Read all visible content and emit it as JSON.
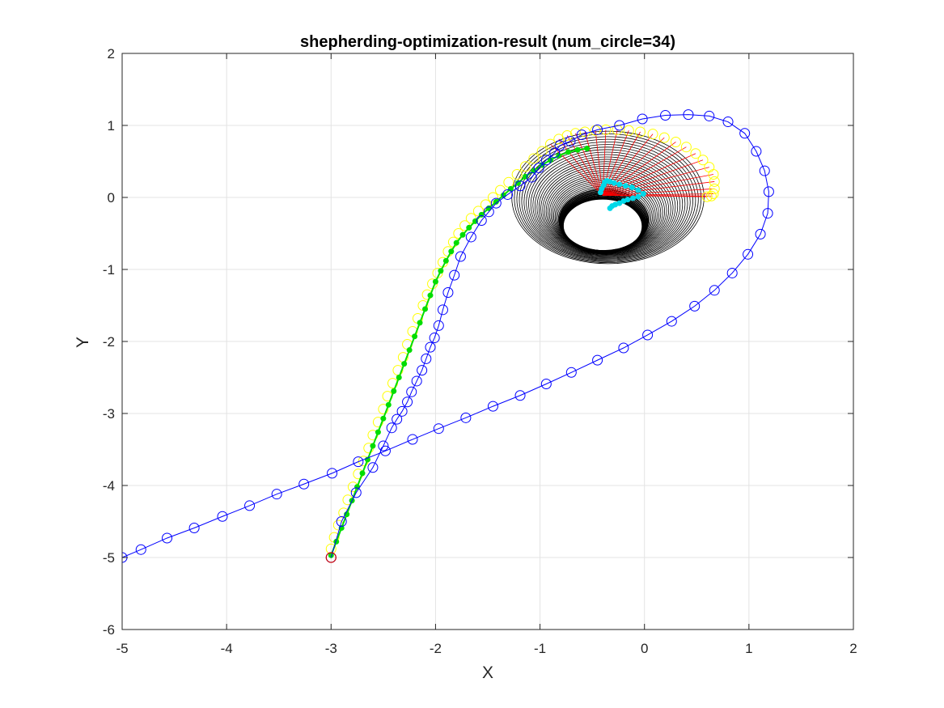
{
  "chart_data": {
    "type": "scatter",
    "title": "shepherding-optimization-result (num_circle=34)",
    "xlabel": "X",
    "ylabel": "Y",
    "xlim": [
      -5,
      2
    ],
    "ylim": [
      -6,
      2
    ],
    "xticks": [
      "-5",
      "-4",
      "-3",
      "-2",
      "-1",
      "0",
      "1",
      "2"
    ],
    "yticks": [
      "-6",
      "-5",
      "-4",
      "-3",
      "-2",
      "-1",
      "0",
      "1",
      "2"
    ],
    "grid": true,
    "colors": {
      "blue_path": "#0000ff",
      "yellow_markers": "#ffff00",
      "green_path": "#00dd00",
      "red_lines": "#ff0000",
      "black_circles": "#000000",
      "cyan_path": "#00d8e8",
      "start_marker": "#cc0000"
    },
    "series": [
      {
        "marker": "circle-open",
        "color": "blue_path",
        "line": true,
        "x": [
          -5.0,
          -4.82,
          -4.57,
          -4.31,
          -4.04,
          -3.78,
          -3.52,
          -3.26,
          -2.99,
          -2.74,
          -2.48,
          -2.22,
          -1.97,
          -1.71,
          -1.45,
          -1.19,
          -0.94,
          -0.7,
          -0.45,
          -0.2,
          0.03,
          0.26,
          0.48,
          0.67,
          0.84,
          0.99,
          1.11,
          1.18,
          1.19,
          1.15,
          1.07,
          0.96,
          0.8,
          0.62,
          0.42,
          0.2,
          -0.02,
          -0.24,
          -0.45,
          -0.6,
          -0.71,
          -0.81,
          -0.86,
          -0.94,
          -1.01,
          -1.08,
          -1.19,
          -1.31,
          -1.42,
          -1.49,
          -1.56,
          -1.66,
          -1.76,
          -1.82,
          -1.88,
          -1.93,
          -1.97,
          -2.01,
          -2.05,
          -2.09,
          -2.13,
          -2.18,
          -2.23,
          -2.27,
          -2.32,
          -2.37,
          -2.42,
          -2.5,
          -2.6,
          -2.76,
          -2.9,
          -3.0
        ],
        "y": [
          -5.0,
          -4.89,
          -4.73,
          -4.59,
          -4.43,
          -4.28,
          -4.12,
          -3.98,
          -3.83,
          -3.67,
          -3.52,
          -3.36,
          -3.21,
          -3.06,
          -2.9,
          -2.75,
          -2.59,
          -2.43,
          -2.26,
          -2.09,
          -1.91,
          -1.72,
          -1.51,
          -1.29,
          -1.05,
          -0.79,
          -0.51,
          -0.22,
          0.08,
          0.37,
          0.64,
          0.89,
          1.05,
          1.13,
          1.15,
          1.14,
          1.09,
          1.0,
          0.94,
          0.87,
          0.78,
          0.72,
          0.62,
          0.52,
          0.41,
          0.28,
          0.16,
          0.04,
          -0.08,
          -0.2,
          -0.32,
          -0.55,
          -0.82,
          -1.08,
          -1.32,
          -1.56,
          -1.78,
          -1.95,
          -2.08,
          -2.24,
          -2.4,
          -2.55,
          -2.7,
          -2.84,
          -2.97,
          -3.08,
          -3.2,
          -3.45,
          -3.75,
          -4.1,
          -4.5,
          -5.0
        ]
      },
      {
        "marker": "circle-open",
        "color": "yellow_markers",
        "line": false,
        "x": [
          -3.0,
          -2.97,
          -2.93,
          -2.88,
          -2.84,
          -2.79,
          -2.74,
          -2.69,
          -2.64,
          -2.6,
          -2.55,
          -2.5,
          -2.46,
          -2.41,
          -2.36,
          -2.31,
          -2.27,
          -2.22,
          -2.17,
          -2.12,
          -2.08,
          -2.03,
          -1.98,
          -1.93,
          -1.88,
          -1.83,
          -1.78,
          -1.72,
          -1.66,
          -1.59,
          -1.52,
          -1.45,
          -1.38,
          -1.3,
          -1.22,
          -1.14,
          -1.06,
          -0.98,
          -0.9,
          -0.82,
          -0.74,
          -0.66,
          -0.57,
          -0.47,
          -0.37,
          -0.26,
          -0.15,
          -0.04,
          0.08,
          0.19,
          0.3,
          0.4,
          0.49,
          0.56,
          0.62,
          0.66,
          0.67,
          0.67,
          0.66,
          0.64,
          0.6
        ],
        "y": [
          -4.88,
          -4.72,
          -4.55,
          -4.38,
          -4.2,
          -4.02,
          -3.84,
          -3.66,
          -3.48,
          -3.3,
          -3.12,
          -2.94,
          -2.76,
          -2.58,
          -2.4,
          -2.22,
          -2.04,
          -1.86,
          -1.68,
          -1.5,
          -1.35,
          -1.2,
          -1.05,
          -0.9,
          -0.75,
          -0.62,
          -0.5,
          -0.39,
          -0.29,
          -0.19,
          -0.1,
          0.0,
          0.1,
          0.21,
          0.32,
          0.43,
          0.54,
          0.64,
          0.74,
          0.81,
          0.86,
          0.89,
          0.91,
          0.93,
          0.94,
          0.94,
          0.93,
          0.91,
          0.88,
          0.83,
          0.77,
          0.7,
          0.61,
          0.52,
          0.42,
          0.32,
          0.22,
          0.12,
          0.05,
          0.02,
          0.01
        ]
      },
      {
        "marker": "dot",
        "color": "green_path",
        "line": true,
        "x": [
          -3.0,
          -2.95,
          -2.9,
          -2.85,
          -2.8,
          -2.75,
          -2.7,
          -2.65,
          -2.6,
          -2.55,
          -2.5,
          -2.45,
          -2.4,
          -2.35,
          -2.3,
          -2.25,
          -2.2,
          -2.15,
          -2.1,
          -2.05,
          -2.0,
          -1.95,
          -1.9,
          -1.85,
          -1.8,
          -1.74,
          -1.68,
          -1.62,
          -1.56,
          -1.49,
          -1.42,
          -1.35,
          -1.28,
          -1.21,
          -1.14,
          -1.06,
          -0.98,
          -0.9,
          -0.82,
          -0.73,
          -0.64,
          -0.55
        ],
        "y": [
          -4.97,
          -4.78,
          -4.59,
          -4.4,
          -4.21,
          -4.02,
          -3.83,
          -3.64,
          -3.45,
          -3.26,
          -3.07,
          -2.88,
          -2.69,
          -2.5,
          -2.31,
          -2.12,
          -1.93,
          -1.74,
          -1.55,
          -1.36,
          -1.17,
          -1.02,
          -0.88,
          -0.75,
          -0.63,
          -0.52,
          -0.42,
          -0.33,
          -0.24,
          -0.15,
          -0.06,
          0.03,
          0.12,
          0.2,
          0.29,
          0.37,
          0.45,
          0.52,
          0.58,
          0.63,
          0.66,
          0.68
        ]
      },
      {
        "marker": "dot",
        "color": "cyan_path",
        "line": true,
        "x": [
          -0.42,
          -0.41,
          -0.39,
          -0.38,
          -0.36,
          -0.33,
          -0.29,
          -0.24,
          -0.18,
          -0.12,
          -0.06,
          -0.01,
          -0.06,
          -0.11,
          -0.16,
          -0.2,
          -0.24,
          -0.28,
          -0.31,
          -0.33
        ],
        "y": [
          0.07,
          0.12,
          0.17,
          0.21,
          0.23,
          0.22,
          0.2,
          0.18,
          0.16,
          0.14,
          0.1,
          0.05,
          0.01,
          -0.01,
          -0.03,
          -0.05,
          -0.08,
          -0.1,
          -0.12,
          -0.15
        ]
      }
    ],
    "start_point": {
      "x": -3.0,
      "y": -5.0
    },
    "circles": {
      "count": 34,
      "center_x_start": -0.4,
      "center_y_start": -0.4,
      "center_x_end": -0.35,
      "center_y_end": 0.0,
      "radius_start": 0.38,
      "radius_end": 0.92
    },
    "red_lines": {
      "origin_x": -0.4,
      "origin_y": 0.03,
      "x": [
        0.6,
        0.64,
        0.66,
        0.67,
        0.67,
        0.66,
        0.62,
        0.56,
        0.49,
        0.4,
        0.3,
        0.19,
        0.08,
        -0.04,
        -0.15,
        -0.26,
        -0.37,
        -0.47,
        -0.57,
        -0.66,
        -0.74,
        -0.82,
        -0.9
      ],
      "y": [
        0.01,
        0.02,
        0.05,
        0.12,
        0.22,
        0.32,
        0.42,
        0.52,
        0.61,
        0.7,
        0.77,
        0.83,
        0.88,
        0.91,
        0.93,
        0.94,
        0.94,
        0.93,
        0.91,
        0.89,
        0.86,
        0.81,
        0.74
      ]
    }
  }
}
